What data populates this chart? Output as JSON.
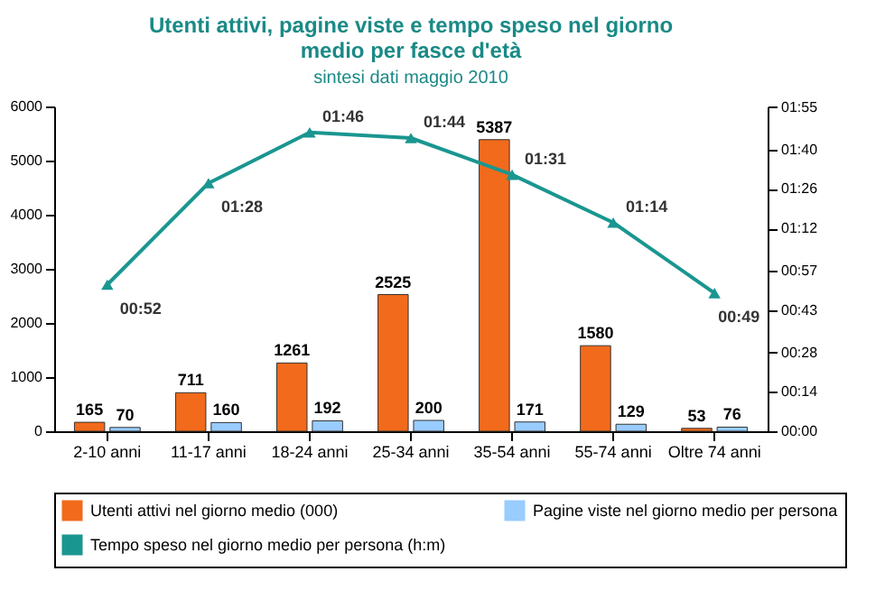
{
  "chart_data": {
    "type": "bar",
    "title": "Utenti attivi, pagine viste e tempo speso nel giorno medio per fasce d'età",
    "subtitle": "sintesi dati maggio 2010",
    "categories": [
      "2-10 anni",
      "11-17 anni",
      "18-24 anni",
      "25-34 anni",
      "35-54 anni",
      "55-74 anni",
      "Oltre 74 anni"
    ],
    "series": [
      {
        "name": "Utenti attivi nel giorno medio (000)",
        "color": "#f26a1b",
        "values": [
          165,
          711,
          1261,
          2525,
          5387,
          1580,
          53
        ]
      },
      {
        "name": "Pagine viste nel giorno medio per persona",
        "color": "#99ccff",
        "values": [
          70,
          160,
          192,
          200,
          171,
          129,
          76
        ]
      },
      {
        "name": "Tempo speso nel giorno medio per persona (h:m)",
        "type": "line",
        "axis": "y2",
        "color": "#1a9690",
        "marker": "triangle",
        "values": [
          52,
          88,
          106,
          104,
          91,
          74,
          49
        ],
        "value_labels": [
          "00:52",
          "01:28",
          "01:46",
          "01:44",
          "01:31",
          "01:14",
          "00:49"
        ]
      }
    ],
    "data_labels": true,
    "ylim": [
      0,
      6000
    ],
    "yticks": [
      0,
      1000,
      2000,
      3000,
      4000,
      5000,
      6000
    ],
    "y2lim": [
      0,
      115.2
    ],
    "y2ticks": [
      {
        "value": 0,
        "label": "00:00"
      },
      {
        "value": 14,
        "label": "00:14"
      },
      {
        "value": 28,
        "label": "00:28"
      },
      {
        "value": 43,
        "label": "00:43"
      },
      {
        "value": 57,
        "label": "00:57"
      },
      {
        "value": 72,
        "label": "01:12"
      },
      {
        "value": 86,
        "label": "01:26"
      },
      {
        "value": 100,
        "label": "01:40"
      },
      {
        "value": 115,
        "label": "01:55"
      }
    ],
    "grid": false,
    "legend": "bottom"
  }
}
